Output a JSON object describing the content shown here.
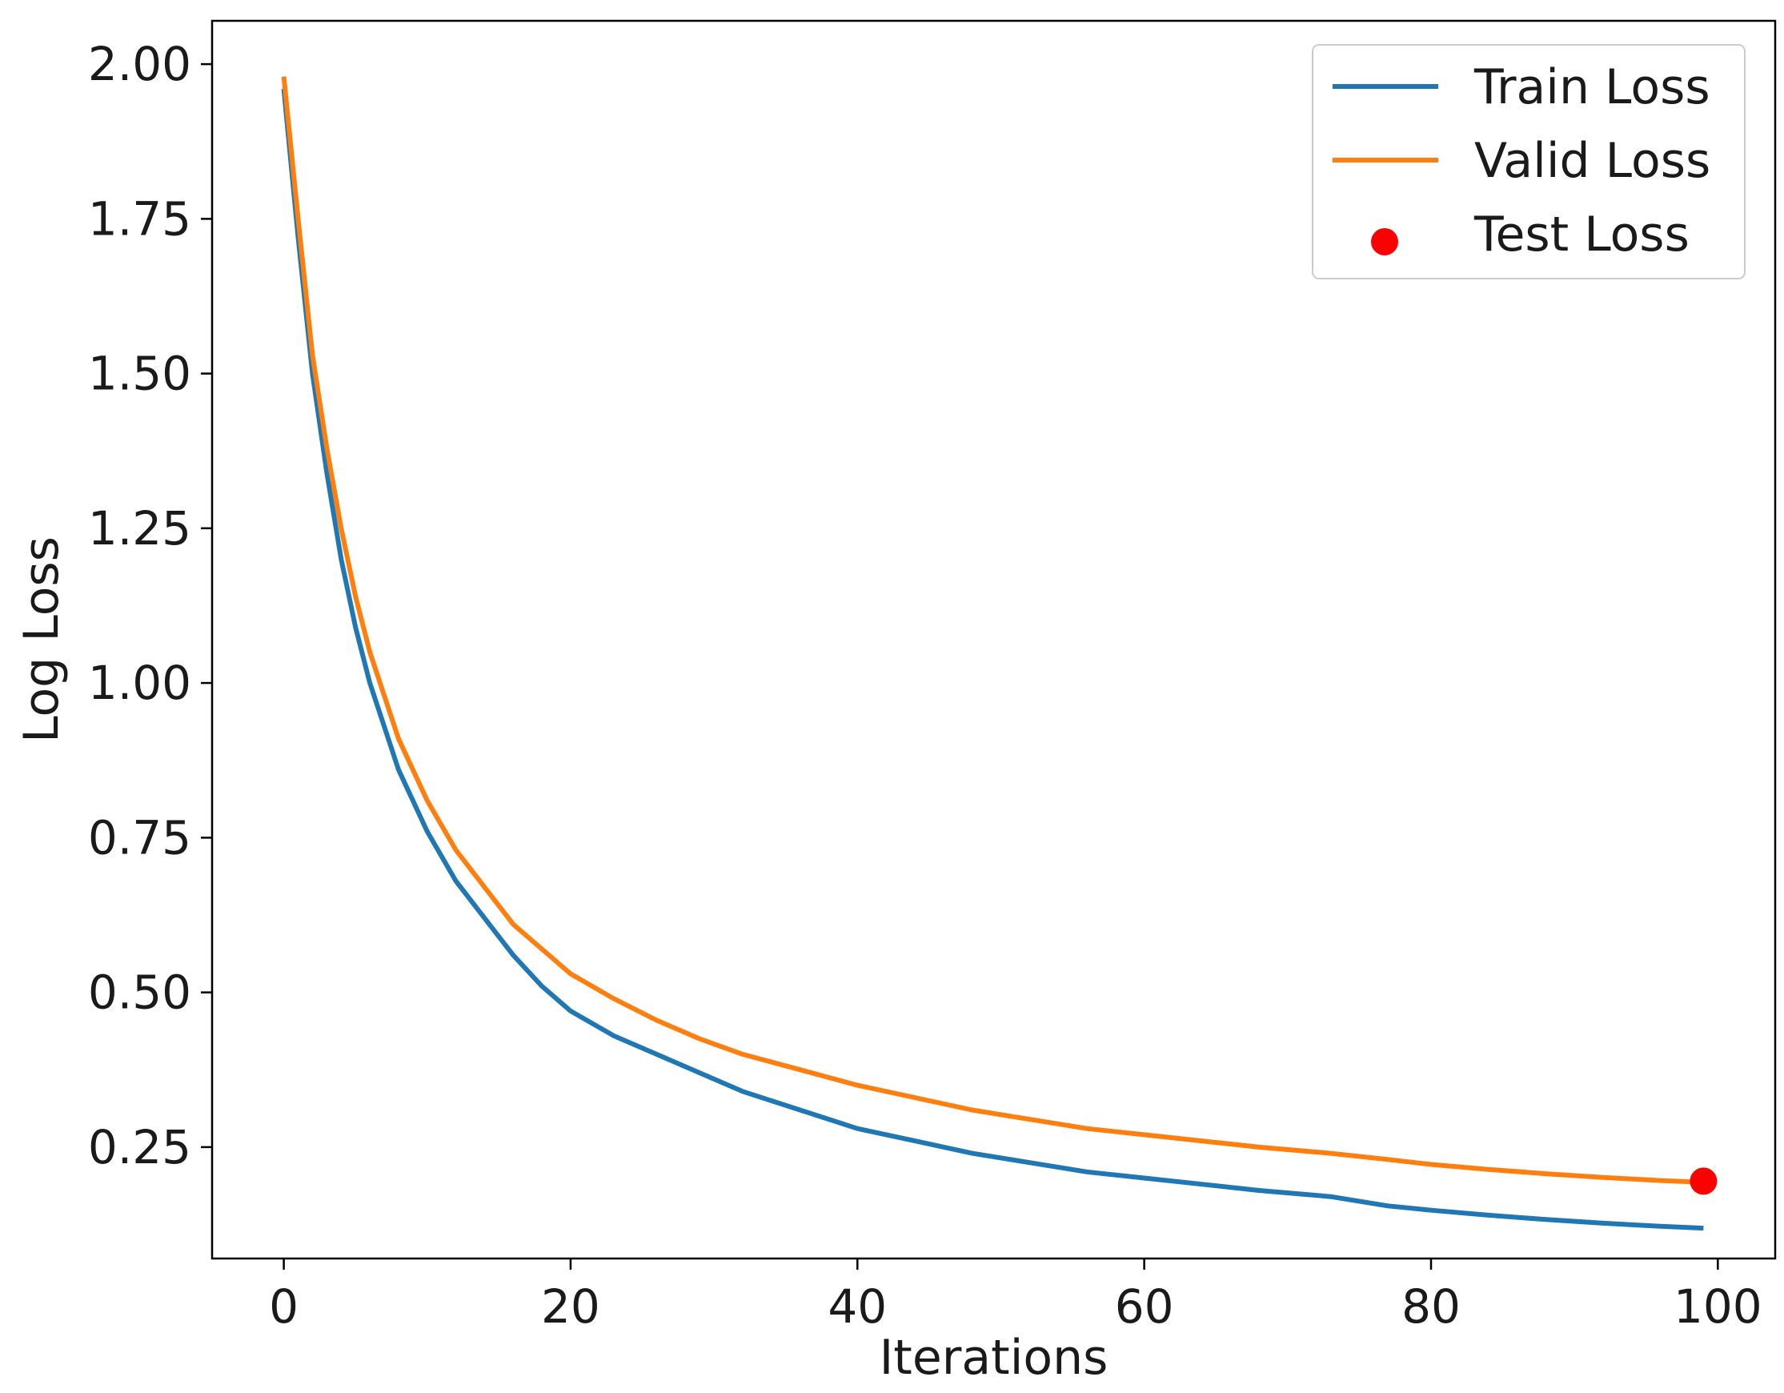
{
  "chart_data": {
    "type": "line",
    "title": "",
    "xlabel": "Iterations",
    "ylabel": "Log Loss",
    "xlim": [
      -5,
      104
    ],
    "ylim": [
      0.07,
      2.07
    ],
    "xticks": [
      0,
      20,
      40,
      60,
      80,
      100
    ],
    "xtick_labels": [
      "0",
      "20",
      "40",
      "60",
      "80",
      "100"
    ],
    "yticks": [
      0.25,
      0.5,
      0.75,
      1.0,
      1.25,
      1.5,
      1.75,
      2.0
    ],
    "ytick_labels": [
      "0.25",
      "0.50",
      "0.75",
      "1.00",
      "1.25",
      "1.50",
      "1.75",
      "2.00"
    ],
    "grid": false,
    "legend_position": "top-right",
    "series": [
      {
        "name": "Train Loss",
        "color": "#1f77b4",
        "x": [
          0,
          1,
          2,
          3,
          4,
          5,
          6,
          7,
          8,
          10,
          12,
          14,
          16,
          18,
          20,
          23,
          26,
          29,
          32,
          36,
          40,
          44,
          48,
          52,
          56,
          60,
          64,
          68,
          73,
          77,
          80,
          84,
          88,
          92,
          96,
          99
        ],
        "y": [
          1.96,
          1.72,
          1.5,
          1.34,
          1.2,
          1.09,
          1.0,
          0.93,
          0.86,
          0.76,
          0.68,
          0.62,
          0.56,
          0.51,
          0.47,
          0.43,
          0.4,
          0.37,
          0.34,
          0.31,
          0.28,
          0.26,
          0.24,
          0.225,
          0.21,
          0.2,
          0.19,
          0.18,
          0.17,
          0.155,
          0.148,
          0.14,
          0.133,
          0.127,
          0.122,
          0.119
        ]
      },
      {
        "name": "Valid Loss",
        "color": "#ff7f0e",
        "x": [
          0,
          1,
          2,
          3,
          4,
          5,
          6,
          7,
          8,
          10,
          12,
          14,
          16,
          18,
          20,
          23,
          26,
          29,
          32,
          36,
          40,
          44,
          48,
          52,
          56,
          60,
          64,
          68,
          73,
          77,
          80,
          84,
          88,
          92,
          96,
          99
        ],
        "y": [
          1.98,
          1.75,
          1.53,
          1.38,
          1.25,
          1.14,
          1.05,
          0.98,
          0.91,
          0.81,
          0.73,
          0.67,
          0.61,
          0.57,
          0.53,
          0.49,
          0.455,
          0.425,
          0.4,
          0.375,
          0.35,
          0.33,
          0.31,
          0.295,
          0.28,
          0.27,
          0.26,
          0.25,
          0.24,
          0.23,
          0.222,
          0.214,
          0.207,
          0.201,
          0.196,
          0.193
        ]
      },
      {
        "name": "Test Loss",
        "color": "#ff0000",
        "marker": "circle",
        "x": [
          99
        ],
        "y": [
          0.195
        ]
      }
    ]
  }
}
